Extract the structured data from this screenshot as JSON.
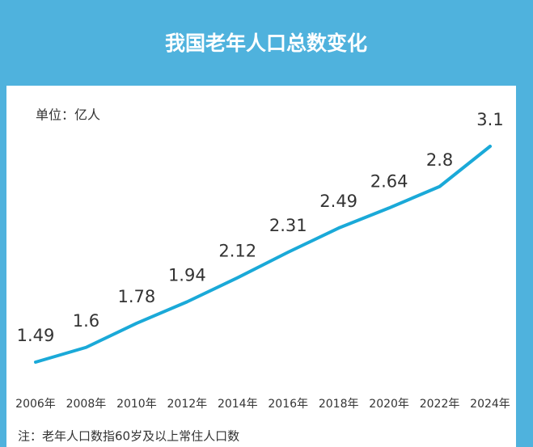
{
  "chart_data": {
    "type": "line",
    "title": "我国老年人口总数变化",
    "unit_label": "单位：亿人",
    "note": "注：老年人口数指60岁及以上常住人口数",
    "categories": [
      "2006年",
      "2008年",
      "2010年",
      "2012年",
      "2014年",
      "2016年",
      "2018年",
      "2020年",
      "2022年",
      "2024年"
    ],
    "values": [
      1.49,
      1.6,
      1.78,
      1.94,
      2.12,
      2.31,
      2.49,
      2.64,
      2.8,
      3.1
    ],
    "color": "#1aa9d8"
  }
}
